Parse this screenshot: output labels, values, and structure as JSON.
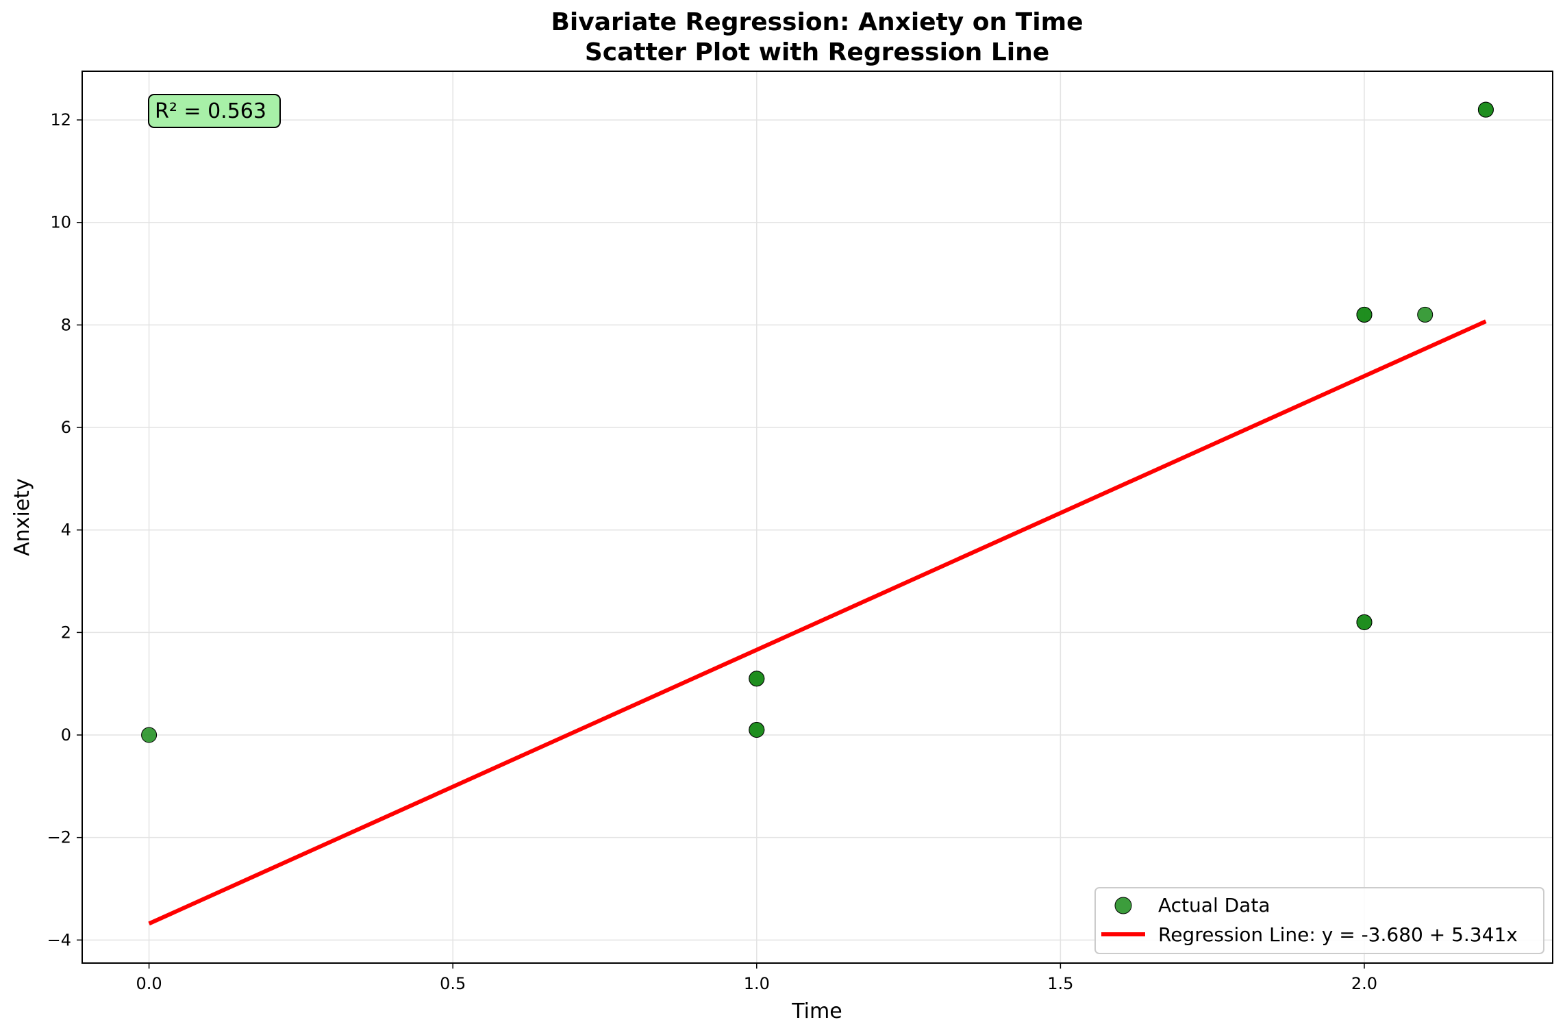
{
  "chart_data": {
    "type": "scatter",
    "title_line1": "Bivariate Regression: Anxiety on Time",
    "title_line2": "Scatter Plot with Regression Line",
    "xlabel": "Time",
    "ylabel": "Anxiety",
    "xlim": [
      -0.11,
      2.31
    ],
    "ylim": [
      -4.45,
      12.95
    ],
    "x_ticks": [
      0.0,
      0.5,
      1.0,
      1.5,
      2.0
    ],
    "x_tick_labels": [
      "0.0",
      "0.5",
      "1.0",
      "1.5",
      "2.0"
    ],
    "y_ticks": [
      -4,
      -2,
      0,
      2,
      4,
      6,
      8,
      10,
      12
    ],
    "y_tick_labels": [
      "−4",
      "−2",
      "0",
      "2",
      "4",
      "6",
      "8",
      "10",
      "12"
    ],
    "grid": true,
    "legend_position": "lower-right",
    "series": [
      {
        "name": "Actual Data",
        "kind": "scatter",
        "color": "#1a8c1a",
        "edge_color": "#000000",
        "x": [
          0.0,
          1.0,
          1.0,
          1.0,
          1.0,
          2.0,
          2.0,
          2.0,
          2.0,
          2.1,
          2.2,
          2.2
        ],
        "y": [
          0.0,
          0.1,
          0.1,
          1.1,
          1.1,
          2.2,
          2.2,
          8.2,
          8.2,
          8.2,
          12.2,
          12.2
        ]
      },
      {
        "name": "Regression Line: y = -3.680 + 5.341x",
        "kind": "line",
        "color": "#ff0000",
        "intercept": -3.68,
        "slope": 5.341,
        "x_range": [
          0.0,
          2.2
        ]
      }
    ],
    "annotation": {
      "text": "R² = 0.563",
      "background": "#a8f0a8"
    }
  }
}
